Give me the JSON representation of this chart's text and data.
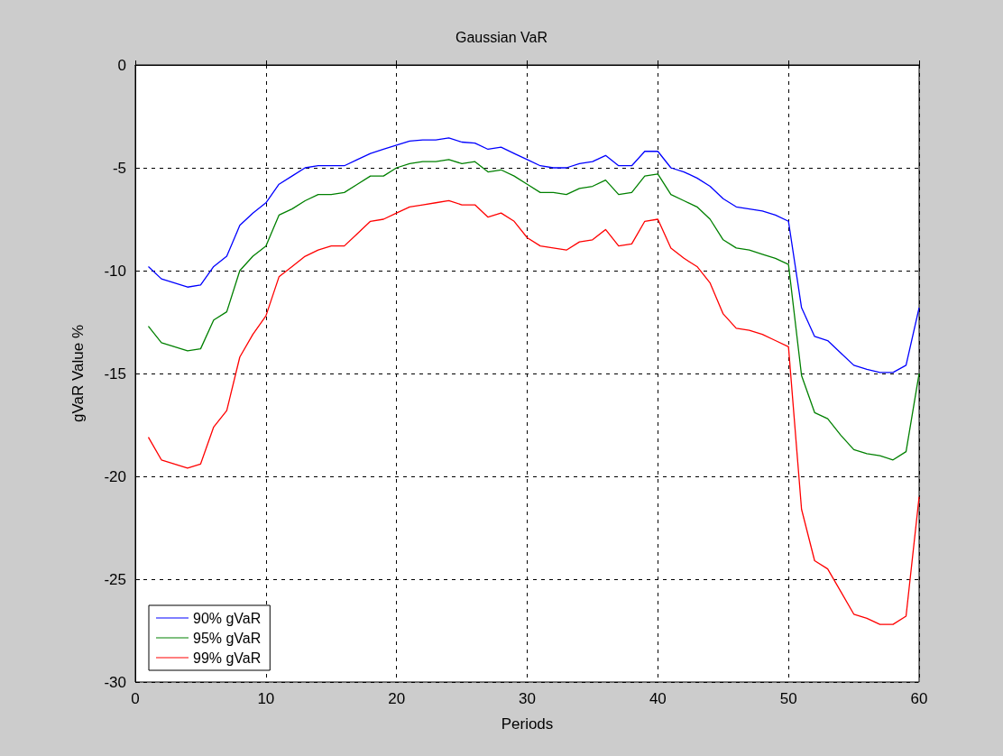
{
  "chart_data": {
    "type": "line",
    "title": "Gaussian VaR",
    "xlabel": "Periods",
    "ylabel": "gVaR Value %",
    "x": [
      1,
      2,
      3,
      4,
      5,
      6,
      7,
      8,
      9,
      10,
      11,
      12,
      13,
      14,
      15,
      16,
      17,
      18,
      19,
      20,
      21,
      22,
      23,
      24,
      25,
      26,
      27,
      28,
      29,
      30,
      31,
      32,
      33,
      34,
      35,
      36,
      37,
      38,
      39,
      40,
      41,
      42,
      43,
      44,
      45,
      46,
      47,
      48,
      49,
      50,
      51,
      52,
      53,
      54,
      55,
      56,
      57,
      58,
      59,
      60
    ],
    "series": [
      {
        "name": "90% gVaR",
        "color": "#0000ff",
        "values": [
          -9.8,
          -10.4,
          -10.6,
          -10.8,
          -10.7,
          -9.8,
          -9.3,
          -7.8,
          -7.2,
          -6.7,
          -5.8,
          -5.4,
          -5.0,
          -4.9,
          -4.9,
          -4.9,
          -4.6,
          -4.3,
          -4.1,
          -3.9,
          -3.7,
          -3.65,
          -3.65,
          -3.55,
          -3.75,
          -3.8,
          -4.1,
          -4.0,
          -4.3,
          -4.6,
          -4.9,
          -5.0,
          -5.0,
          -4.8,
          -4.7,
          -4.4,
          -4.9,
          -4.9,
          -4.2,
          -4.2,
          -5.0,
          -5.2,
          -5.5,
          -5.9,
          -6.5,
          -6.9,
          -7.0,
          -7.1,
          -7.3,
          -7.6,
          -11.8,
          -13.2,
          -13.4,
          -14.0,
          -14.6,
          -14.8,
          -14.95,
          -14.95,
          -14.6,
          -11.8
        ]
      },
      {
        "name": "95% gVaR",
        "color": "#008000",
        "values": [
          -12.7,
          -13.5,
          -13.7,
          -13.9,
          -13.8,
          -12.4,
          -12.0,
          -10.0,
          -9.3,
          -8.8,
          -7.3,
          -7.0,
          -6.6,
          -6.3,
          -6.3,
          -6.2,
          -5.8,
          -5.4,
          -5.4,
          -5.0,
          -4.8,
          -4.7,
          -4.7,
          -4.6,
          -4.8,
          -4.7,
          -5.2,
          -5.1,
          -5.4,
          -5.8,
          -6.2,
          -6.2,
          -6.3,
          -6.0,
          -5.9,
          -5.6,
          -6.3,
          -6.2,
          -5.4,
          -5.3,
          -6.3,
          -6.6,
          -6.9,
          -7.5,
          -8.5,
          -8.9,
          -9.0,
          -9.2,
          -9.4,
          -9.7,
          -15.1,
          -16.9,
          -17.2,
          -18.0,
          -18.7,
          -18.9,
          -19.0,
          -19.2,
          -18.8,
          -15.0
        ]
      },
      {
        "name": "99% gVaR",
        "color": "#ff0000",
        "values": [
          -18.1,
          -19.2,
          -19.4,
          -19.6,
          -19.4,
          -17.6,
          -16.8,
          -14.2,
          -13.1,
          -12.2,
          -10.3,
          -9.8,
          -9.3,
          -9.0,
          -8.8,
          -8.8,
          -8.2,
          -7.6,
          -7.5,
          -7.2,
          -6.9,
          -6.8,
          -6.7,
          -6.6,
          -6.8,
          -6.8,
          -7.4,
          -7.2,
          -7.6,
          -8.4,
          -8.8,
          -8.9,
          -9.0,
          -8.6,
          -8.5,
          -8.0,
          -8.8,
          -8.7,
          -7.6,
          -7.5,
          -8.9,
          -9.4,
          -9.8,
          -10.6,
          -12.1,
          -12.8,
          -12.9,
          -13.1,
          -13.4,
          -13.7,
          -21.6,
          -24.1,
          -24.5,
          -25.6,
          -26.7,
          -26.9,
          -27.2,
          -27.2,
          -26.8,
          -21.0
        ]
      }
    ],
    "xlim": [
      0,
      60
    ],
    "xticks": [
      0,
      10,
      20,
      30,
      40,
      50,
      60
    ],
    "ylim": [
      -30,
      0
    ],
    "yticks": [
      -30,
      -25,
      -20,
      -15,
      -10,
      -5,
      0
    ],
    "grid": true,
    "legend": "bottom left",
    "marker": "none",
    "line_style": "solid"
  }
}
